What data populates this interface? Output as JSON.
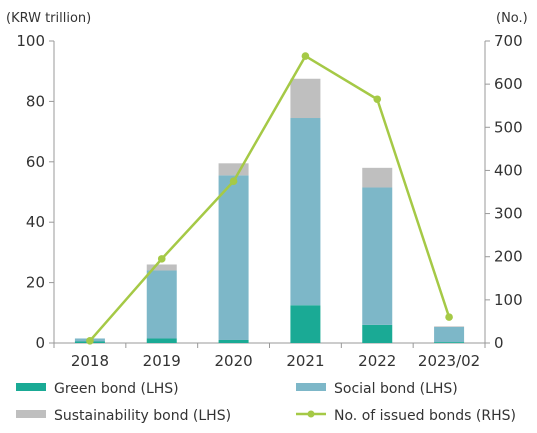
{
  "chart_data": {
    "type": "bar",
    "stacked": true,
    "categories": [
      "2018",
      "2019",
      "2020",
      "2021",
      "2022",
      "2023/02"
    ],
    "series": [
      {
        "name": "Green bond (LHS)",
        "axis": "left",
        "values": [
          0.5,
          1.5,
          1.0,
          12.5,
          6.0,
          0.3
        ]
      },
      {
        "name": "Social bond (LHS)",
        "axis": "left",
        "values": [
          1.0,
          22.5,
          54.5,
          62.0,
          45.5,
          5.0
        ]
      },
      {
        "name": "Sustainability bond (LHS)",
        "axis": "left",
        "values": [
          0.0,
          2.0,
          4.0,
          13.0,
          6.5,
          0.2
        ]
      }
    ],
    "line_series": {
      "name": "No. of issued bonds (RHS)",
      "axis": "right",
      "values": [
        5,
        195,
        375,
        665,
        565,
        60
      ]
    },
    "left_axis": {
      "label": "(KRW trillion)",
      "ylim": [
        0,
        100
      ],
      "ticks": [
        "0",
        "20",
        "40",
        "60",
        "80",
        "100"
      ]
    },
    "right_axis": {
      "label": "(No.)",
      "ylim": [
        0,
        700
      ],
      "ticks": [
        "0",
        "100",
        "200",
        "300",
        "400",
        "500",
        "600",
        "700"
      ]
    },
    "legend_position": "bottom",
    "grid": false
  },
  "colors": {
    "green": "#1aaa95",
    "social": "#7db7c8",
    "sustain": "#bfbfbf",
    "line": "#a5c946",
    "axis": "#999999",
    "text": "#333333"
  }
}
